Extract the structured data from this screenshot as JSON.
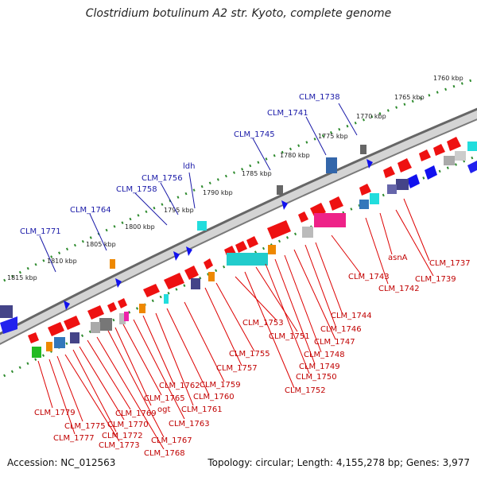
{
  "title": "Clostridium botulinum A2 str. Kyoto, complete genome",
  "footer": {
    "accession": "Accession: NC_012563",
    "topology": "Topology: circular; Length: 4,155,278 bp; Genes: 3,977"
  },
  "scale_labels": [
    "1760 kbp",
    "1765 kbp",
    "1770 kbp",
    "1775 kbp",
    "1780 kbp",
    "1785 kbp",
    "1790 kbp",
    "1795 kbp",
    "1800 kbp",
    "1805 kbp",
    "1810 kbp",
    "1815 kbp"
  ],
  "upper_labels": [
    "CLM_1738",
    "CLM_1741",
    "CLM_1745",
    "ldh",
    "CLM_1756",
    "CLM_1758",
    "CLM_1764",
    "CLM_1771"
  ],
  "lower_labels": [
    "CLM_1737",
    "CLM_1739",
    "asnA",
    "CLM_1742",
    "CLM_1743",
    "CLM_1744",
    "CLM_1746",
    "CLM_1747",
    "CLM_1748",
    "CLM_1749",
    "CLM_1750",
    "CLM_1751",
    "CLM_1752",
    "CLM_1753",
    "CLM_1755",
    "CLM_1757",
    "CLM_1759",
    "CLM_1760",
    "CLM_1761",
    "CLM_1762",
    "CLM_1763",
    "CLM_1765",
    "ogt",
    "CLM_1767",
    "CLM_1768",
    "CLM_1769",
    "CLM_1770",
    "CLM_1772",
    "CLM_1773",
    "CLM_1775",
    "CLM_1777",
    "CLM_1779"
  ],
  "colors": {
    "forward_gene": "#ee1111",
    "reverse_gene": "#1111ee",
    "label_red": "#c00000",
    "label_blue": "#1a1aa8",
    "tick_green": "#2e8b2e"
  }
}
